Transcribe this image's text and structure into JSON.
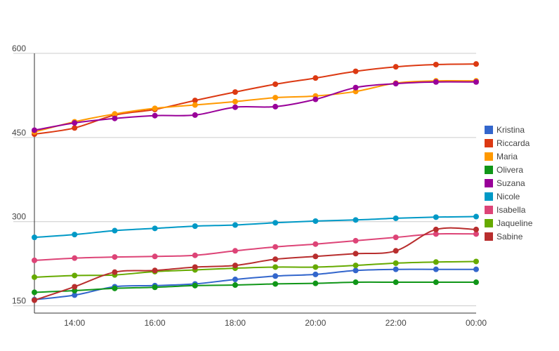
{
  "chart_data": {
    "type": "line",
    "x": [
      "13:00",
      "14:00",
      "15:00",
      "16:00",
      "17:00",
      "18:00",
      "19:00",
      "20:00",
      "21:00",
      "22:00",
      "23:00",
      "00:00"
    ],
    "x_tick_labels": [
      "14:00",
      "16:00",
      "18:00",
      "20:00",
      "22:00",
      "00:00"
    ],
    "y_tick_labels": [
      "150",
      "300",
      "450",
      "600"
    ],
    "ylim": [
      137,
      600
    ],
    "grid": true,
    "legend_position": "right",
    "series": [
      {
        "name": "Kristina",
        "color": "#3366cc",
        "values": [
          161,
          169,
          184,
          186,
          189,
          197,
          203,
          206,
          213,
          215,
          215,
          215
        ]
      },
      {
        "name": "Riccarda",
        "color": "#dc3912",
        "values": [
          456,
          467,
          490,
          500,
          516,
          531,
          545,
          556,
          568,
          576,
          580,
          581
        ]
      },
      {
        "name": "Maria",
        "color": "#ff9900",
        "values": [
          460,
          478,
          492,
          502,
          508,
          514,
          521,
          524,
          532,
          547,
          551,
          551
        ]
      },
      {
        "name": "Olivera",
        "color": "#109618",
        "values": [
          174,
          177,
          181,
          183,
          186,
          187,
          189,
          190,
          192,
          192,
          192,
          192
        ]
      },
      {
        "name": "Suzana",
        "color": "#990099",
        "values": [
          463,
          476,
          484,
          489,
          490,
          504,
          505,
          518,
          539,
          546,
          549,
          549
        ]
      },
      {
        "name": "Nicole",
        "color": "#0099c6",
        "values": [
          272,
          277,
          284,
          288,
          292,
          294,
          298,
          301,
          303,
          306,
          308,
          309
        ]
      },
      {
        "name": "Isabella",
        "color": "#dd4477",
        "values": [
          231,
          235,
          237,
          238,
          240,
          248,
          255,
          260,
          266,
          272,
          278,
          278
        ]
      },
      {
        "name": "Jaqueline",
        "color": "#66aa00",
        "values": [
          201,
          204,
          205,
          211,
          214,
          217,
          219,
          219,
          222,
          226,
          228,
          229
        ]
      },
      {
        "name": "Sabine",
        "color": "#b82e2e",
        "values": [
          160,
          184,
          210,
          213,
          219,
          222,
          233,
          238,
          243,
          248,
          286,
          286
        ]
      }
    ]
  }
}
